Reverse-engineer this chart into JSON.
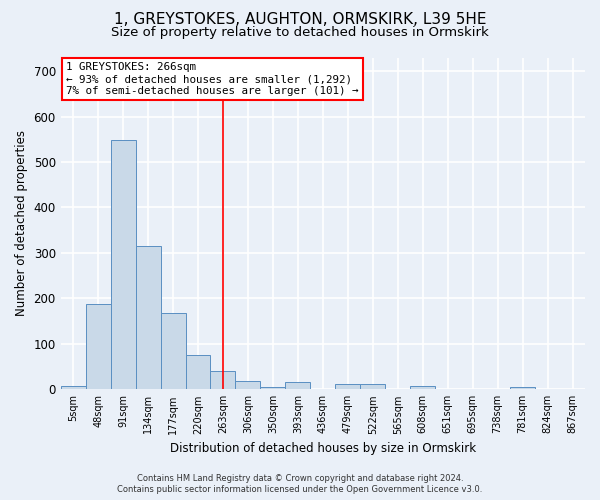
{
  "title": "1, GREYSTOKES, AUGHTON, ORMSKIRK, L39 5HE",
  "subtitle": "Size of property relative to detached houses in Ormskirk",
  "xlabel": "Distribution of detached houses by size in Ormskirk",
  "ylabel": "Number of detached properties",
  "footer_line1": "Contains HM Land Registry data © Crown copyright and database right 2024.",
  "footer_line2": "Contains public sector information licensed under the Open Government Licence v3.0.",
  "bin_labels": [
    "5sqm",
    "48sqm",
    "91sqm",
    "134sqm",
    "177sqm",
    "220sqm",
    "263sqm",
    "306sqm",
    "350sqm",
    "393sqm",
    "436sqm",
    "479sqm",
    "522sqm",
    "565sqm",
    "608sqm",
    "651sqm",
    "695sqm",
    "738sqm",
    "781sqm",
    "824sqm",
    "867sqm"
  ],
  "bar_values": [
    7,
    187,
    548,
    316,
    167,
    75,
    40,
    18,
    5,
    15,
    0,
    11,
    11,
    0,
    7,
    0,
    0,
    0,
    5,
    0,
    0
  ],
  "bar_color": "#c9d9e8",
  "bar_edge_color": "#5a8fc2",
  "vline_x": 6,
  "vline_color": "red",
  "annotation_line1": "1 GREYSTOKES: 266sqm",
  "annotation_line2": "← 93% of detached houses are smaller (1,292)",
  "annotation_line3": "7% of semi-detached houses are larger (101) →",
  "annotation_box_color": "white",
  "annotation_box_edge_color": "red",
  "ylim": [
    0,
    730
  ],
  "yticks": [
    0,
    100,
    200,
    300,
    400,
    500,
    600,
    700
  ],
  "bg_color": "#eaf0f8",
  "plot_bg_color": "#eaf0f8",
  "title_fontsize": 11,
  "subtitle_fontsize": 9.5,
  "grid_color": "white",
  "grid_alpha": 1.0,
  "grid_linewidth": 1.2
}
